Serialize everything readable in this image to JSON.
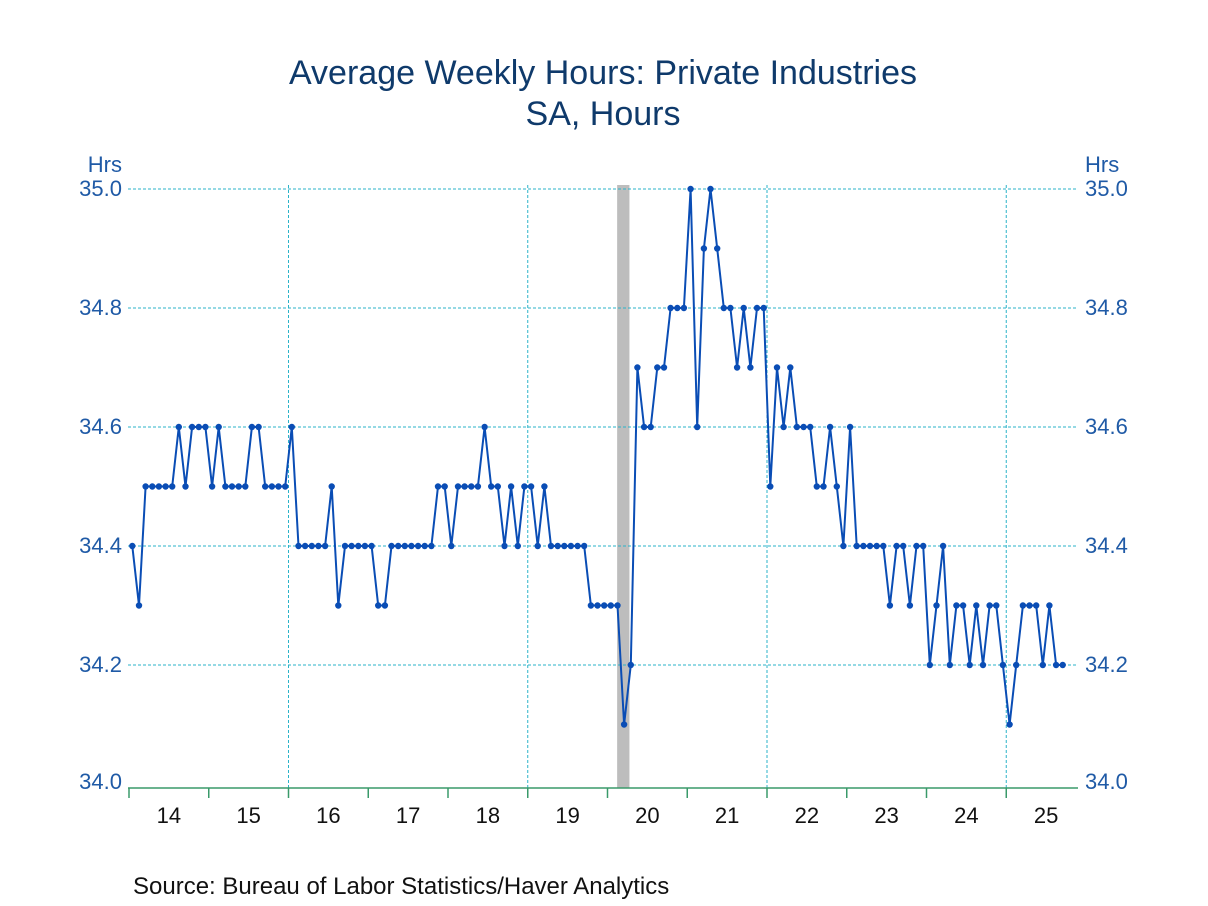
{
  "chart_data": {
    "type": "line",
    "title": "Average Weekly Hours: Private Industries",
    "subtitle": "SA, Hours",
    "ylabel_left": "Hrs",
    "ylabel_right": "Hrs",
    "xlabel": "",
    "ylim": [
      34.0,
      35.0
    ],
    "yticks": [
      "34.0",
      "34.2",
      "34.4",
      "34.6",
      "34.8",
      "35.0"
    ],
    "ytick_values": [
      34.0,
      34.2,
      34.4,
      34.6,
      34.8,
      35.0
    ],
    "xticks": [
      "14",
      "15",
      "16",
      "17",
      "18",
      "19",
      "20",
      "21",
      "22",
      "23",
      "24",
      "25"
    ],
    "x_start": "2014-01",
    "frequency": "monthly",
    "grid": true,
    "vertical_gridline_years": [
      2016,
      2019,
      2022,
      2025
    ],
    "recession_shading": [
      {
        "start": "2020-02",
        "end": "2020-04"
      }
    ],
    "source": "Source:  Bureau of Labor Statistics/Haver Analytics",
    "colors": {
      "line": "#0a4db5",
      "grid": "#2bb3c9",
      "axis": "#3a9a6a",
      "recession": "#bdbdbd",
      "title": "#0f3a6b",
      "ytick": "#1f5aa6"
    },
    "series": [
      {
        "name": "Average Weekly Hours: Private Industries",
        "values": [
          34.4,
          34.3,
          34.5,
          34.5,
          34.5,
          34.5,
          34.5,
          34.6,
          34.5,
          34.6,
          34.6,
          34.6,
          34.5,
          34.6,
          34.5,
          34.5,
          34.5,
          34.5,
          34.6,
          34.6,
          34.5,
          34.5,
          34.5,
          34.5,
          34.6,
          34.4,
          34.4,
          34.4,
          34.4,
          34.4,
          34.5,
          34.3,
          34.4,
          34.4,
          34.4,
          34.4,
          34.4,
          34.3,
          34.3,
          34.4,
          34.4,
          34.4,
          34.4,
          34.4,
          34.4,
          34.4,
          34.5,
          34.5,
          34.4,
          34.5,
          34.5,
          34.5,
          34.5,
          34.6,
          34.5,
          34.5,
          34.4,
          34.5,
          34.4,
          34.5,
          34.5,
          34.4,
          34.5,
          34.4,
          34.4,
          34.4,
          34.4,
          34.4,
          34.4,
          34.3,
          34.3,
          34.3,
          34.3,
          34.3,
          34.1,
          34.2,
          34.7,
          34.6,
          34.6,
          34.7,
          34.7,
          34.8,
          34.8,
          34.8,
          35.0,
          34.6,
          34.9,
          35.0,
          34.9,
          34.8,
          34.8,
          34.7,
          34.8,
          34.7,
          34.8,
          34.8,
          34.5,
          34.7,
          34.6,
          34.7,
          34.6,
          34.6,
          34.6,
          34.5,
          34.5,
          34.6,
          34.5,
          34.4,
          34.6,
          34.4,
          34.4,
          34.4,
          34.4,
          34.4,
          34.3,
          34.4,
          34.4,
          34.3,
          34.4,
          34.4,
          34.2,
          34.3,
          34.4,
          34.2,
          34.3,
          34.3,
          34.2,
          34.3,
          34.2,
          34.3,
          34.3,
          34.2,
          34.1,
          34.2,
          34.3,
          34.3,
          34.3,
          34.2,
          34.3,
          34.2,
          34.2
        ]
      }
    ]
  }
}
